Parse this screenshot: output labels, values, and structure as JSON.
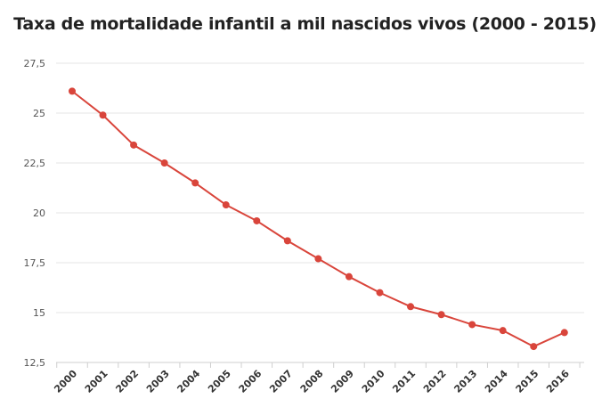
{
  "chart_data": {
    "type": "line",
    "title": "Taxa de mortalidade infantil a mil nascidos vivos (2000 - 2015)",
    "xlabel": "",
    "ylabel": "",
    "categories": [
      "2000",
      "2001",
      "2002",
      "2003",
      "2004",
      "2005",
      "2006",
      "2007",
      "2008",
      "2009",
      "2010",
      "2011",
      "2012",
      "2013",
      "2014",
      "2015",
      "2016"
    ],
    "series": [
      {
        "values": [
          26.1,
          24.9,
          23.4,
          22.5,
          21.5,
          20.4,
          19.6,
          18.6,
          17.7,
          16.8,
          16.0,
          15.3,
          14.9,
          14.4,
          14.1,
          13.3,
          14.0
        ]
      }
    ],
    "yticks": [
      12.5,
      15,
      17.5,
      20,
      22.5,
      25,
      27.5
    ],
    "ytick_labels": [
      "12,5",
      "15",
      "17,5",
      "20",
      "22,5",
      "25",
      "27,5"
    ],
    "ylim": [
      12.5,
      27.5
    ],
    "grid": true,
    "line_color": "#d9453b",
    "grid_color": "#e6e6e6"
  }
}
